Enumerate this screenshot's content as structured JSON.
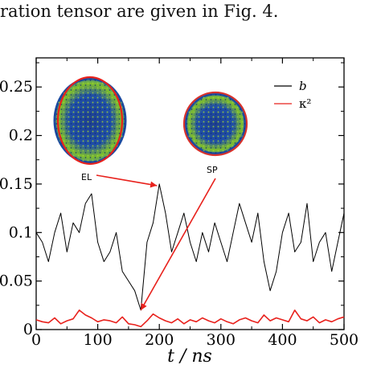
{
  "header_text": "ration tensor are given in Fig. 4.",
  "chart_data": {
    "type": "line",
    "title": "",
    "xlabel": "t / ns",
    "ylabel": "",
    "xlim": [
      0,
      500
    ],
    "ylim": [
      0,
      0.28
    ],
    "xticks": [
      "0",
      "100",
      "200",
      "300",
      "400",
      "500"
    ],
    "yticks": [
      "0",
      "0.05",
      "0.1",
      "0.15",
      "0.2",
      "0.25"
    ],
    "grid": false,
    "legend": "top-right",
    "series": [
      {
        "name": "b",
        "color": "#000000",
        "x": [
          0,
          10,
          20,
          30,
          40,
          50,
          60,
          70,
          80,
          90,
          100,
          110,
          120,
          130,
          140,
          150,
          160,
          170,
          180,
          190,
          200,
          210,
          220,
          230,
          240,
          250,
          260,
          270,
          280,
          290,
          300,
          310,
          320,
          330,
          340,
          350,
          360,
          370,
          380,
          390,
          400,
          410,
          420,
          430,
          440,
          450,
          460,
          470,
          480,
          490,
          500
        ],
        "y": [
          0.1,
          0.09,
          0.07,
          0.1,
          0.12,
          0.08,
          0.11,
          0.1,
          0.13,
          0.14,
          0.09,
          0.07,
          0.08,
          0.1,
          0.06,
          0.05,
          0.04,
          0.02,
          0.09,
          0.11,
          0.15,
          0.12,
          0.08,
          0.1,
          0.12,
          0.09,
          0.07,
          0.1,
          0.08,
          0.11,
          0.09,
          0.07,
          0.1,
          0.13,
          0.11,
          0.09,
          0.12,
          0.07,
          0.04,
          0.06,
          0.1,
          0.12,
          0.08,
          0.09,
          0.13,
          0.07,
          0.09,
          0.1,
          0.06,
          0.09,
          0.12
        ]
      },
      {
        "name": "κ²",
        "color": "#e8211c",
        "x": [
          0,
          10,
          20,
          30,
          40,
          50,
          60,
          70,
          80,
          90,
          100,
          110,
          120,
          130,
          140,
          150,
          160,
          170,
          180,
          190,
          200,
          210,
          220,
          230,
          240,
          250,
          260,
          270,
          280,
          290,
          300,
          310,
          320,
          330,
          340,
          350,
          360,
          370,
          380,
          390,
          400,
          410,
          420,
          430,
          440,
          450,
          460,
          470,
          480,
          490,
          500
        ],
        "y": [
          0.01,
          0.008,
          0.007,
          0.012,
          0.006,
          0.009,
          0.011,
          0.02,
          0.015,
          0.012,
          0.008,
          0.01,
          0.009,
          0.007,
          0.013,
          0.006,
          0.005,
          0.003,
          0.009,
          0.016,
          0.012,
          0.009,
          0.007,
          0.011,
          0.006,
          0.01,
          0.008,
          0.012,
          0.009,
          0.007,
          0.011,
          0.008,
          0.006,
          0.01,
          0.012,
          0.009,
          0.007,
          0.015,
          0.009,
          0.012,
          0.01,
          0.008,
          0.02,
          0.011,
          0.009,
          0.013,
          0.007,
          0.01,
          0.008,
          0.011,
          0.013
        ]
      }
    ],
    "annotations": [
      {
        "label": "EL",
        "description": "ellipsoidal micelle snapshot"
      },
      {
        "label": "SP",
        "description": "spherical micelle snapshot"
      }
    ]
  }
}
